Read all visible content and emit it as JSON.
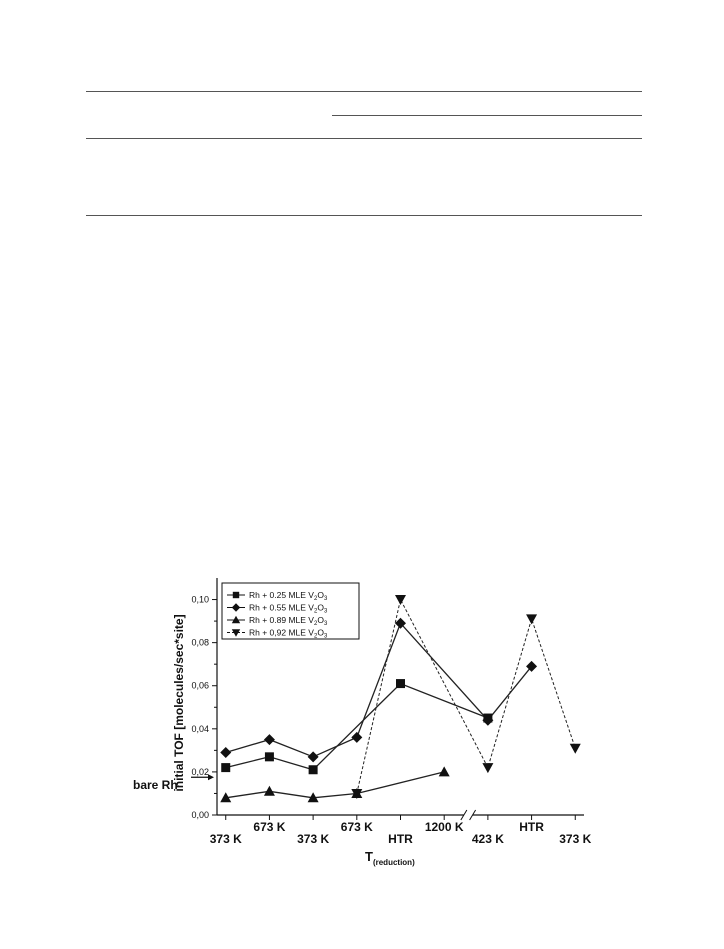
{
  "chart_data": {
    "type": "line",
    "ylabel": "initial TOF [molecules/sec*site]",
    "xlabel_main": "T",
    "xlabel_sub": "(reduction)",
    "ylim": [
      0,
      0.11
    ],
    "y_ticks": [
      "0,00",
      "0,02",
      "0,04",
      "0,06",
      "0,08",
      "0,10"
    ],
    "x_tick_labels": [
      {
        "x": 1,
        "label": "373 K"
      },
      {
        "x": 2,
        "label": "673 K"
      },
      {
        "x": 3,
        "label": "373 K"
      },
      {
        "x": 4,
        "label": "673 K"
      },
      {
        "x": 5,
        "label": "HTR"
      },
      {
        "x": 6,
        "label": "1200 K"
      },
      {
        "x": 7,
        "label": "423 K"
      },
      {
        "x": 8,
        "label": "HTR"
      },
      {
        "x": 9,
        "label": "373 K"
      }
    ],
    "reference": {
      "label": "bare Rh",
      "y": 0.018
    },
    "legend_position": "top-left",
    "series": [
      {
        "name": "Rh + 0.25 MLE V",
        "name_sub": "2",
        "name_tail": "O",
        "name_sub2": "3",
        "marker": "square",
        "dashed": false,
        "x": [
          1,
          2,
          3,
          5,
          7
        ],
        "y": [
          0.022,
          0.027,
          0.021,
          0.061,
          0.045
        ]
      },
      {
        "name": "Rh + 0.55 MLE V",
        "name_sub": "2",
        "name_tail": "O",
        "name_sub2": "3",
        "marker": "diamond",
        "dashed": false,
        "x": [
          1,
          2,
          3,
          4,
          5,
          7,
          8
        ],
        "y": [
          0.029,
          0.035,
          0.027,
          0.036,
          0.089,
          0.044,
          0.069
        ]
      },
      {
        "name": "Rh + 0.89 MLE V",
        "name_sub": "2",
        "name_tail": "O",
        "name_sub2": "3",
        "marker": "triangle-up",
        "dashed": false,
        "x": [
          1,
          2,
          3,
          4,
          6
        ],
        "y": [
          0.008,
          0.011,
          0.008,
          0.01,
          0.02
        ]
      },
      {
        "name": "Rh + 0,92 MLE V",
        "name_sub": "2",
        "name_tail": "O",
        "name_sub2": "3",
        "marker": "triangle-down",
        "dashed": true,
        "x": [
          4,
          5,
          7,
          8,
          9
        ],
        "y": [
          0.01,
          0.1,
          0.022,
          0.091,
          0.031
        ]
      }
    ]
  }
}
